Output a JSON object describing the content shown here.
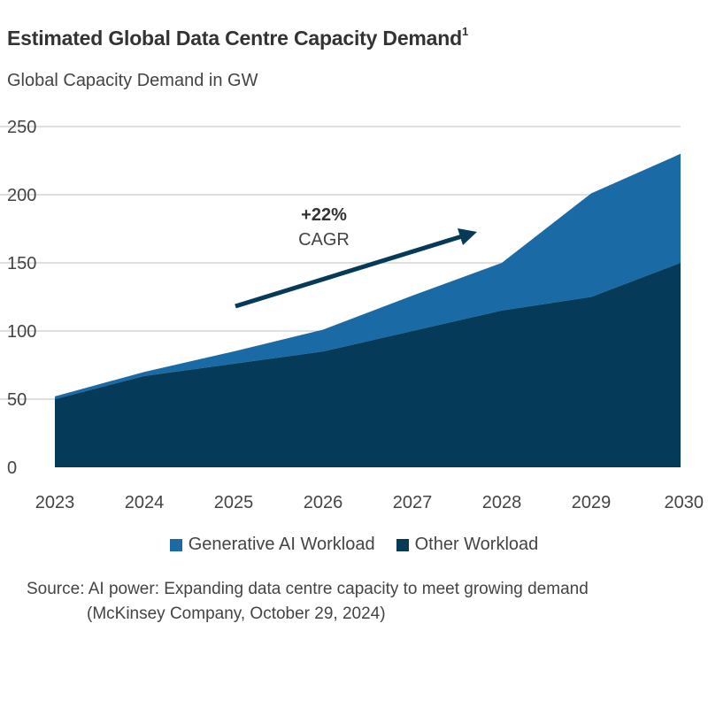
{
  "title": "Estimated Global Data Centre Capacity Demand",
  "title_superscript": "1",
  "subtitle": "Global Capacity Demand in GW",
  "annotation": {
    "value": "+22%",
    "label": "CAGR"
  },
  "source_line1": "Source: AI power: Expanding data centre capacity to meet growing demand",
  "source_line2": "(McKinsey Company, October 29, 2024)",
  "colors": {
    "generative_ai": "#1a6aa6",
    "other": "#053a58",
    "grid": "#cccccc",
    "arrow": "#053a58"
  },
  "chart_data": {
    "type": "area",
    "stacked": true,
    "x": [
      "2023",
      "2024",
      "2025",
      "2026",
      "2027",
      "2028",
      "2029",
      "2030"
    ],
    "series": [
      {
        "name": "Other Workload",
        "values": [
          50,
          67,
          76,
          85,
          100,
          115,
          125,
          150
        ]
      },
      {
        "name": "Generative AI Workload",
        "values": [
          2,
          3,
          9,
          16,
          26,
          35,
          76,
          80
        ]
      }
    ],
    "totals": [
      52,
      70,
      85,
      101,
      126,
      150,
      201,
      230
    ],
    "ylim": [
      0,
      250
    ],
    "y_ticks": [
      "0",
      "50",
      "100",
      "150",
      "200",
      "250"
    ],
    "grid": true,
    "legend": {
      "position": "bottom",
      "entries": [
        "Generative AI Workload",
        "Other Workload"
      ]
    }
  }
}
